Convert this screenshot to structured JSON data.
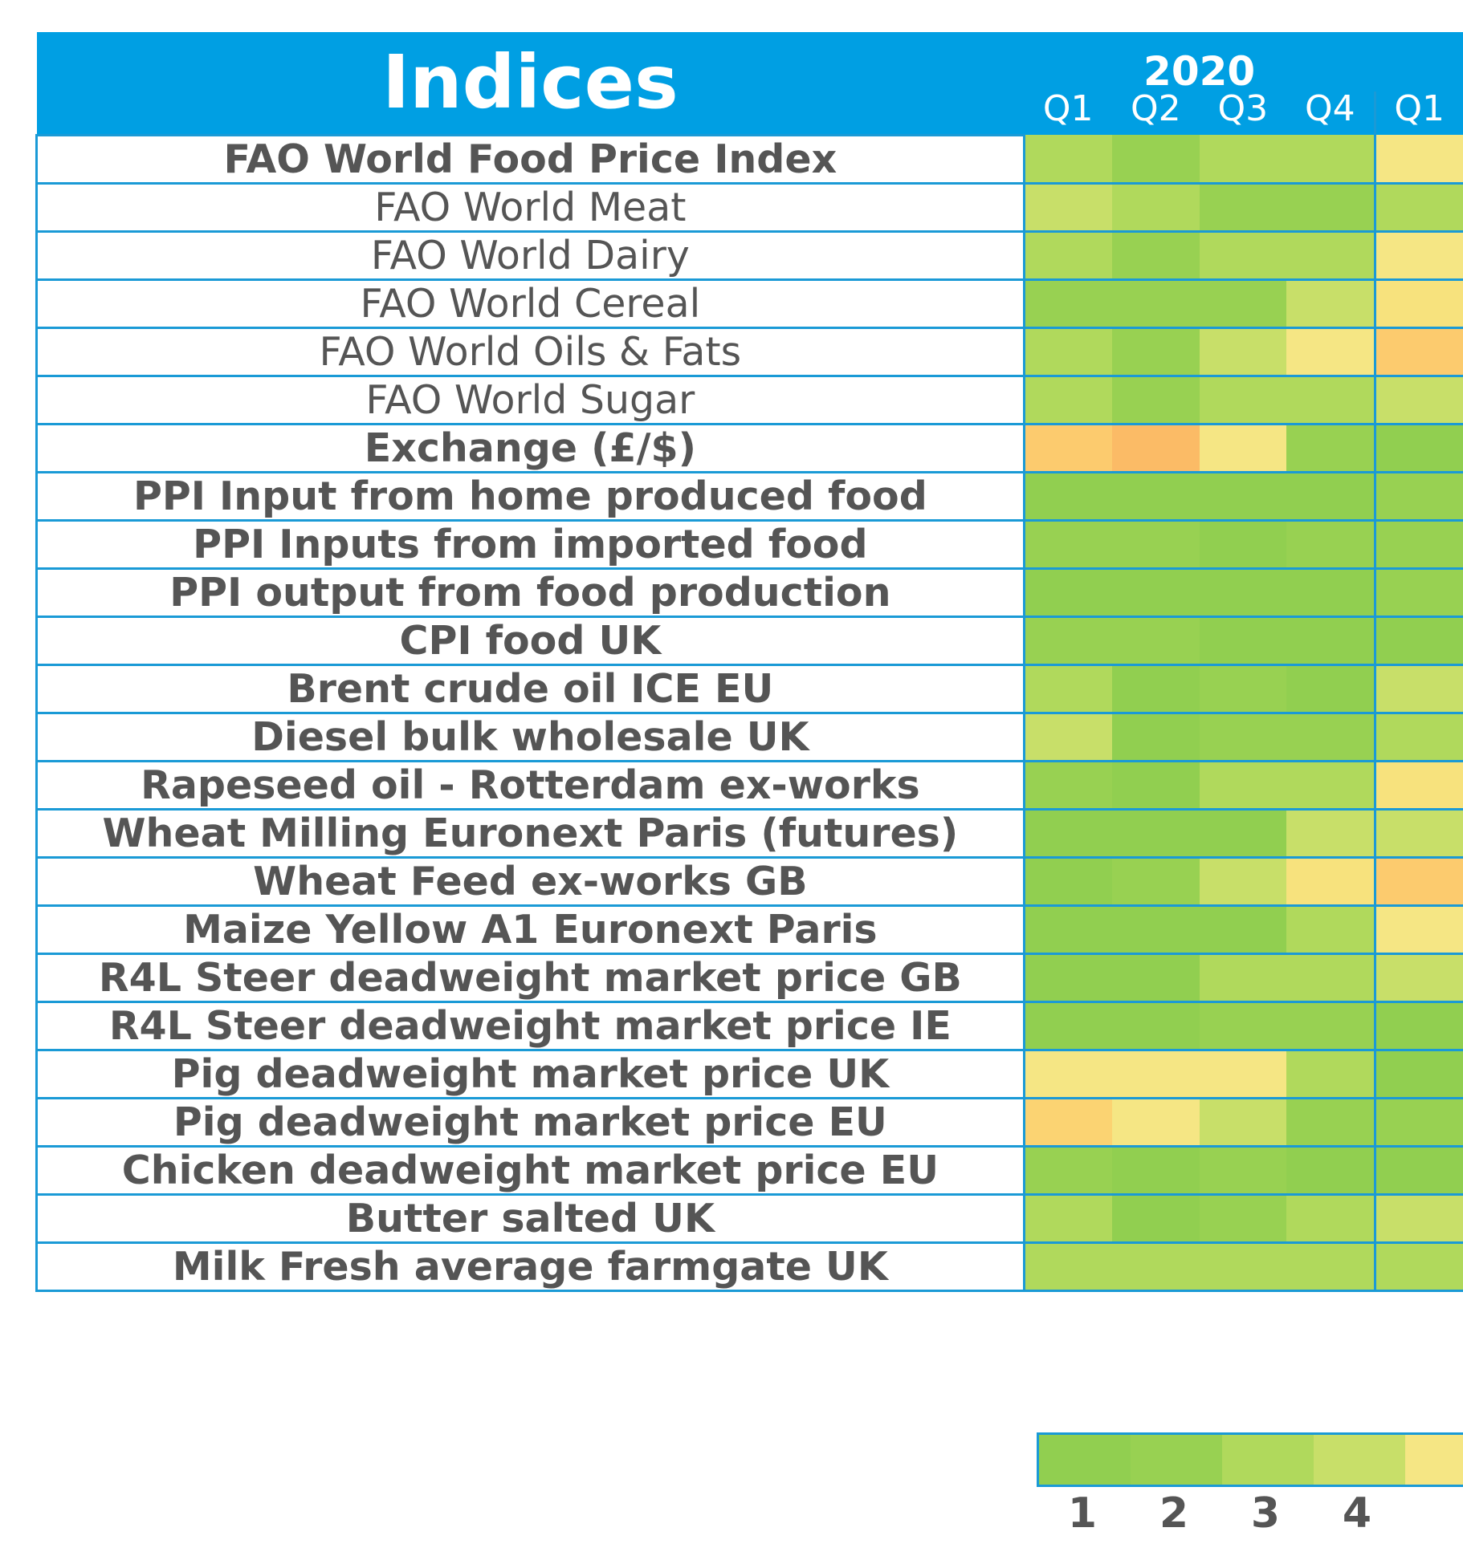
{
  "chart_data": {
    "type": "heatmap",
    "title": "Indices",
    "row_labels": [
      "FAO World Food Price Index",
      "FAO World Meat",
      "FAO World Dairy",
      "FAO World Cereal",
      "FAO World Oils & Fats",
      "FAO World Sugar",
      "Exchange (£/$)",
      "PPI Input from home produced food",
      "PPI Inputs from imported food",
      "PPI output from food production",
      "CPI food UK",
      "Brent crude oil ICE EU",
      "Diesel bulk wholesale UK",
      "Rapeseed oil - Rotterdam ex-works",
      "Wheat Milling Euronext Paris (futures)",
      "Wheat Feed ex-works GB",
      "Maize Yellow A1 Euronext Paris",
      "R4L Steer deadweight market price GB",
      "R4L Steer deadweight market price IE",
      "Pig deadweight market price UK",
      "Pig deadweight market price EU",
      "Chicken deadweight market price EU",
      "Butter salted UK",
      "Milk Fresh average farmgate UK"
    ],
    "main_rows": [
      true,
      false,
      false,
      false,
      false,
      false,
      true,
      true,
      true,
      true,
      true,
      true,
      true,
      true,
      true,
      true,
      true,
      true,
      true,
      true,
      true,
      true,
      true,
      true
    ],
    "years": [
      {
        "label": "2020",
        "quarters": [
          "Q1",
          "Q2",
          "Q3",
          "Q4"
        ]
      }
    ],
    "next_year_quarters": [
      "Q1"
    ],
    "values": [
      [
        3,
        2,
        3,
        3,
        5
      ],
      [
        4,
        3,
        2,
        2,
        3
      ],
      [
        3,
        2,
        3,
        3,
        5
      ],
      [
        2,
        2,
        2,
        4,
        6
      ],
      [
        3,
        2,
        4,
        5,
        8
      ],
      [
        3,
        2,
        3,
        3,
        4
      ],
      [
        8,
        9,
        5,
        2,
        1
      ],
      [
        1,
        1,
        1,
        1,
        2
      ],
      [
        2,
        2,
        1,
        2,
        2
      ],
      [
        1,
        1,
        1,
        1,
        2
      ],
      [
        2,
        2,
        1,
        1,
        1
      ],
      [
        3,
        1,
        2,
        1,
        4
      ],
      [
        4,
        1,
        2,
        2,
        3
      ],
      [
        2,
        1,
        3,
        3,
        6
      ],
      [
        1,
        1,
        1,
        4,
        4
      ],
      [
        1,
        2,
        4,
        6,
        8
      ],
      [
        1,
        1,
        1,
        3,
        5
      ],
      [
        1,
        1,
        3,
        3,
        4
      ],
      [
        1,
        1,
        2,
        2,
        1
      ],
      [
        5,
        5,
        5,
        3,
        1
      ],
      [
        7,
        5,
        4,
        2,
        2
      ],
      [
        2,
        1,
        2,
        1,
        1
      ],
      [
        3,
        1,
        2,
        3,
        4
      ],
      [
        3,
        3,
        3,
        3,
        3
      ]
    ],
    "scale": {
      "labels": [
        "1",
        "2",
        "3",
        "4"
      ],
      "colors": [
        "#91cf50",
        "#98d152",
        "#b0d95c",
        "#c8df69",
        "#f5e684",
        "#f7e27d",
        "#fbd372",
        "#fccb6e",
        "#fbbb66"
      ]
    }
  }
}
